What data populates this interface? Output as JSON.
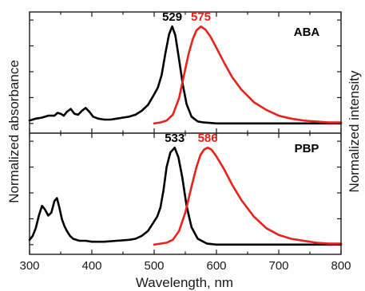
{
  "chart_data": [
    {
      "type": "line",
      "panel": "ABA",
      "xlabel": "Wavelength, nm",
      "ylabel_left": "Normalized absorbance",
      "ylabel_right": "Normalized intensity",
      "xlim": [
        300,
        800
      ],
      "ylim": [
        0,
        1.15
      ],
      "x_ticks": [
        300,
        400,
        500,
        600,
        700,
        800
      ],
      "peak_labels": [
        {
          "text": "529",
          "x": 529,
          "color": "#000000"
        },
        {
          "text": "575",
          "x": 575,
          "color": "#e8221c"
        }
      ],
      "series": [
        {
          "color": "#000000",
          "x": [
            300,
            310,
            320,
            330,
            340,
            345,
            350,
            355,
            360,
            366,
            372,
            378,
            384,
            390,
            396,
            402,
            410,
            420,
            430,
            440,
            450,
            460,
            470,
            480,
            490,
            500,
            506,
            512,
            518,
            524,
            529,
            534,
            540,
            546,
            552,
            560,
            570,
            580,
            600,
            650,
            700,
            800
          ],
          "y": [
            0.03,
            0.05,
            0.06,
            0.08,
            0.08,
            0.11,
            0.1,
            0.08,
            0.12,
            0.15,
            0.1,
            0.09,
            0.13,
            0.16,
            0.12,
            0.07,
            0.05,
            0.04,
            0.04,
            0.05,
            0.06,
            0.07,
            0.09,
            0.13,
            0.19,
            0.3,
            0.37,
            0.5,
            0.72,
            0.92,
            1.0,
            0.91,
            0.66,
            0.4,
            0.2,
            0.07,
            0.02,
            0.01,
            0.0,
            0.0,
            0.0,
            0.0
          ]
        },
        {
          "color": "#e8221c",
          "x": [
            500,
            510,
            520,
            530,
            540,
            548,
            555,
            562,
            568,
            575,
            582,
            590,
            600,
            612,
            625,
            640,
            660,
            680,
            700,
            720,
            740,
            760,
            780,
            800
          ],
          "y": [
            0.0,
            0.01,
            0.03,
            0.09,
            0.26,
            0.5,
            0.71,
            0.87,
            0.96,
            1.0,
            0.97,
            0.9,
            0.78,
            0.63,
            0.48,
            0.35,
            0.22,
            0.14,
            0.08,
            0.05,
            0.03,
            0.02,
            0.01,
            0.01
          ]
        }
      ]
    },
    {
      "type": "line",
      "panel": "PBP",
      "xlim": [
        300,
        800
      ],
      "ylim": [
        0,
        1.15
      ],
      "peak_labels": [
        {
          "text": "533",
          "x": 533,
          "color": "#000000"
        },
        {
          "text": "586",
          "x": 586,
          "color": "#e8221c"
        }
      ],
      "series": [
        {
          "color": "#000000",
          "x": [
            300,
            305,
            310,
            315,
            320,
            325,
            330,
            335,
            340,
            344,
            348,
            352,
            356,
            360,
            365,
            370,
            380,
            390,
            400,
            420,
            440,
            460,
            470,
            480,
            490,
            500,
            505,
            510,
            515,
            520,
            526,
            533,
            539,
            545,
            552,
            560,
            570,
            585,
            600,
            700,
            800
          ],
          "y": [
            0.05,
            0.09,
            0.17,
            0.3,
            0.4,
            0.36,
            0.3,
            0.33,
            0.45,
            0.48,
            0.38,
            0.26,
            0.19,
            0.14,
            0.09,
            0.06,
            0.04,
            0.04,
            0.03,
            0.03,
            0.04,
            0.05,
            0.06,
            0.09,
            0.14,
            0.24,
            0.29,
            0.38,
            0.56,
            0.8,
            0.95,
            1.0,
            0.9,
            0.7,
            0.4,
            0.18,
            0.06,
            0.01,
            0.0,
            0.0,
            0.0
          ]
        },
        {
          "color": "#e8221c",
          "x": [
            500,
            510,
            520,
            530,
            540,
            550,
            560,
            568,
            574,
            580,
            586,
            592,
            600,
            612,
            625,
            640,
            660,
            680,
            700,
            720,
            740,
            760,
            780,
            800
          ],
          "y": [
            0.0,
            0.01,
            0.02,
            0.05,
            0.14,
            0.33,
            0.6,
            0.8,
            0.92,
            0.98,
            1.0,
            0.98,
            0.91,
            0.78,
            0.62,
            0.46,
            0.29,
            0.17,
            0.1,
            0.06,
            0.04,
            0.02,
            0.01,
            0.01
          ]
        }
      ]
    }
  ]
}
